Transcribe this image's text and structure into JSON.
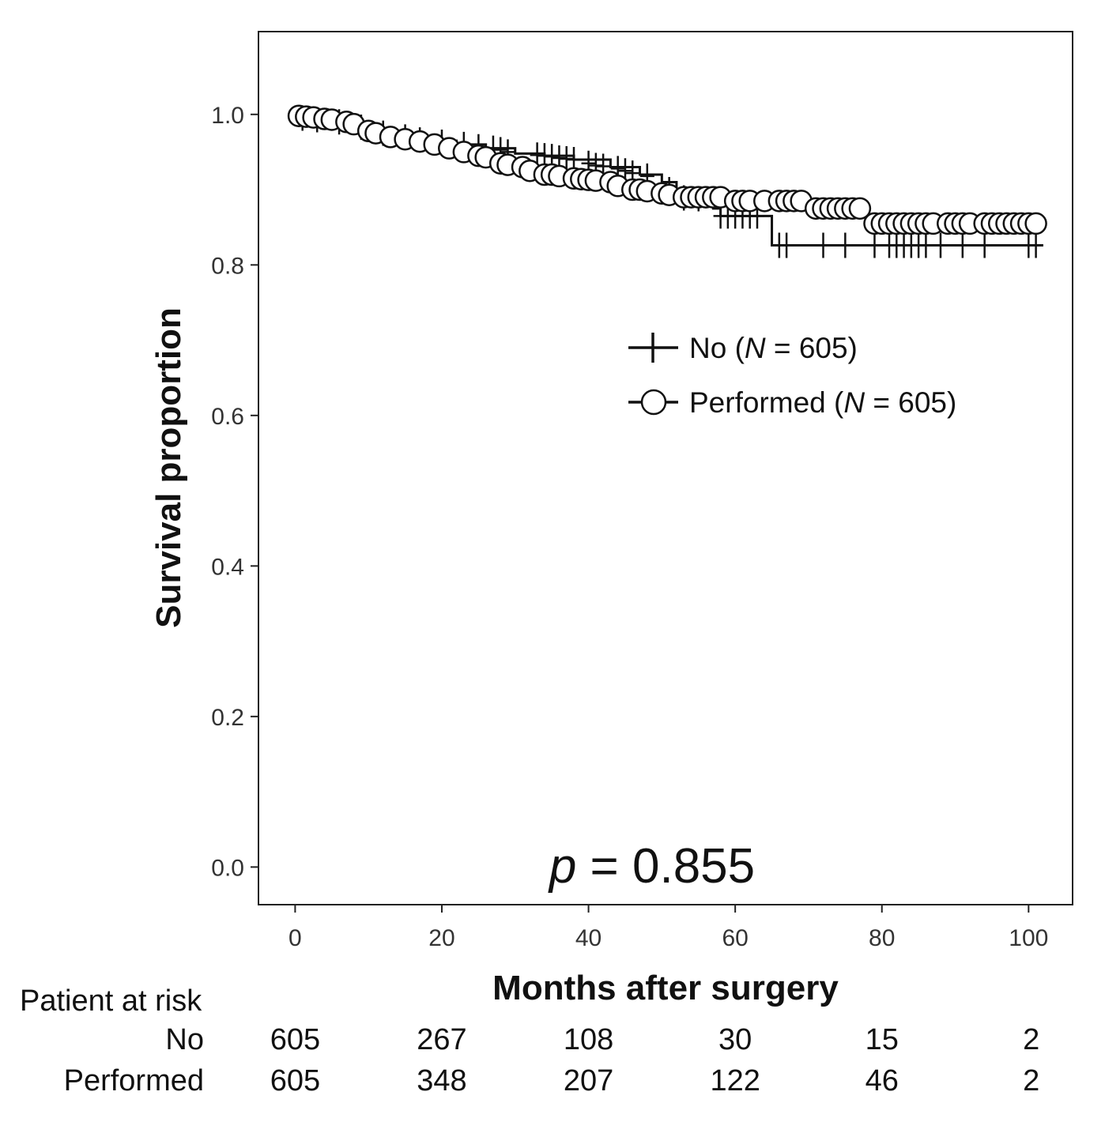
{
  "chart_data": {
    "type": "line",
    "subtype": "kaplan-meier",
    "title": "",
    "xlabel": "Months after surgery",
    "ylabel": "Survival proportion",
    "xlim": [
      -5,
      106
    ],
    "ylim": [
      -0.05,
      1.11
    ],
    "xticks": [
      0,
      20,
      40,
      60,
      80,
      100
    ],
    "yticks": [
      0.0,
      0.2,
      0.4,
      0.6,
      0.8,
      1.0
    ],
    "xtick_labels": [
      "0",
      "20",
      "40",
      "60",
      "80",
      "100"
    ],
    "ytick_labels": [
      "0.0",
      "0.2",
      "0.4",
      "0.6",
      "0.8",
      "1.0"
    ],
    "annotation": {
      "p_italic": "p",
      "p_rest": " = 0.855"
    },
    "legend_position": "center-right",
    "series": [
      {
        "name": "No",
        "legend_label": "No",
        "legend_n_italic": "N",
        "legend_n_rest": " = 605)",
        "marker": "plus",
        "steps": [
          [
            0,
            1.0
          ],
          [
            2,
            0.995
          ],
          [
            5,
            0.99
          ],
          [
            8,
            0.985
          ],
          [
            11,
            0.975
          ],
          [
            14,
            0.97
          ],
          [
            18,
            0.965
          ],
          [
            22,
            0.96
          ],
          [
            26,
            0.955
          ],
          [
            30,
            0.948
          ],
          [
            34,
            0.945
          ],
          [
            38,
            0.94
          ],
          [
            43,
            0.93
          ],
          [
            47,
            0.92
          ],
          [
            50,
            0.91
          ],
          [
            52,
            0.89
          ],
          [
            57,
            0.875
          ],
          [
            58,
            0.865
          ],
          [
            65,
            0.826
          ],
          [
            102,
            0.826
          ]
        ],
        "censors": [
          [
            1,
            0.995
          ],
          [
            3,
            0.993
          ],
          [
            6,
            0.99
          ],
          [
            9,
            0.983
          ],
          [
            12,
            0.975
          ],
          [
            15,
            0.97
          ],
          [
            17,
            0.966
          ],
          [
            20,
            0.963
          ],
          [
            23,
            0.96
          ],
          [
            25,
            0.957
          ],
          [
            27,
            0.955
          ],
          [
            28,
            0.953
          ],
          [
            29,
            0.95
          ],
          [
            33,
            0.946
          ],
          [
            34,
            0.945
          ],
          [
            35,
            0.944
          ],
          [
            36,
            0.942
          ],
          [
            37,
            0.941
          ],
          [
            38,
            0.94
          ],
          [
            40,
            0.935
          ],
          [
            41,
            0.932
          ],
          [
            42,
            0.931
          ],
          [
            44,
            0.928
          ],
          [
            45,
            0.925
          ],
          [
            46,
            0.922
          ],
          [
            48,
            0.918
          ],
          [
            51,
            0.9
          ],
          [
            53,
            0.889
          ],
          [
            55,
            0.888
          ],
          [
            58,
            0.865
          ],
          [
            59,
            0.865
          ],
          [
            60,
            0.865
          ],
          [
            61,
            0.865
          ],
          [
            62,
            0.865
          ],
          [
            63,
            0.865
          ],
          [
            66,
            0.826
          ],
          [
            67,
            0.826
          ],
          [
            72,
            0.826
          ],
          [
            75,
            0.826
          ],
          [
            79,
            0.826
          ],
          [
            81,
            0.826
          ],
          [
            82,
            0.826
          ],
          [
            83,
            0.826
          ],
          [
            84,
            0.826
          ],
          [
            85,
            0.826
          ],
          [
            86,
            0.826
          ],
          [
            88,
            0.826
          ],
          [
            91,
            0.826
          ],
          [
            94,
            0.826
          ],
          [
            100,
            0.826
          ],
          [
            101,
            0.826
          ]
        ]
      },
      {
        "name": "Performed",
        "legend_label": "Performed",
        "legend_n_italic": "N",
        "legend_n_rest": " = 605)",
        "marker": "circle",
        "steps": [
          [
            0,
            1.0
          ],
          [
            3,
            0.995
          ],
          [
            6,
            0.99
          ],
          [
            9,
            0.98
          ],
          [
            12,
            0.97
          ],
          [
            16,
            0.965
          ],
          [
            20,
            0.955
          ],
          [
            24,
            0.945
          ],
          [
            27,
            0.935
          ],
          [
            30,
            0.93
          ],
          [
            33,
            0.92
          ],
          [
            37,
            0.915
          ],
          [
            42,
            0.91
          ],
          [
            45,
            0.9
          ],
          [
            49,
            0.895
          ],
          [
            52,
            0.89
          ],
          [
            59,
            0.885
          ],
          [
            70,
            0.875
          ],
          [
            78,
            0.855
          ],
          [
            102,
            0.855
          ]
        ],
        "censors": [
          [
            0.5,
            0.998
          ],
          [
            1.5,
            0.997
          ],
          [
            2.5,
            0.996
          ],
          [
            4,
            0.994
          ],
          [
            5,
            0.993
          ],
          [
            7,
            0.99
          ],
          [
            8,
            0.987
          ],
          [
            10,
            0.978
          ],
          [
            11,
            0.975
          ],
          [
            13,
            0.97
          ],
          [
            15,
            0.967
          ],
          [
            17,
            0.964
          ],
          [
            19,
            0.96
          ],
          [
            21,
            0.955
          ],
          [
            23,
            0.95
          ],
          [
            25,
            0.945
          ],
          [
            26,
            0.943
          ],
          [
            28,
            0.935
          ],
          [
            29,
            0.933
          ],
          [
            31,
            0.93
          ],
          [
            32,
            0.925
          ],
          [
            34,
            0.92
          ],
          [
            35,
            0.92
          ],
          [
            36,
            0.918
          ],
          [
            38,
            0.915
          ],
          [
            39,
            0.914
          ],
          [
            40,
            0.913
          ],
          [
            41,
            0.912
          ],
          [
            43,
            0.91
          ],
          [
            44,
            0.905
          ],
          [
            46,
            0.9
          ],
          [
            47,
            0.9
          ],
          [
            48,
            0.898
          ],
          [
            50,
            0.895
          ],
          [
            51,
            0.893
          ],
          [
            53,
            0.89
          ],
          [
            54,
            0.89
          ],
          [
            55,
            0.89
          ],
          [
            56,
            0.89
          ],
          [
            57,
            0.89
          ],
          [
            58,
            0.89
          ],
          [
            60,
            0.885
          ],
          [
            61,
            0.885
          ],
          [
            62,
            0.885
          ],
          [
            64,
            0.885
          ],
          [
            66,
            0.885
          ],
          [
            67,
            0.885
          ],
          [
            68,
            0.885
          ],
          [
            69,
            0.885
          ],
          [
            71,
            0.875
          ],
          [
            72,
            0.875
          ],
          [
            73,
            0.875
          ],
          [
            74,
            0.875
          ],
          [
            75,
            0.875
          ],
          [
            76,
            0.875
          ],
          [
            77,
            0.875
          ],
          [
            79,
            0.855
          ],
          [
            80,
            0.855
          ],
          [
            81,
            0.855
          ],
          [
            82,
            0.855
          ],
          [
            83,
            0.855
          ],
          [
            84,
            0.855
          ],
          [
            85,
            0.855
          ],
          [
            86,
            0.855
          ],
          [
            87,
            0.855
          ],
          [
            89,
            0.855
          ],
          [
            90,
            0.855
          ],
          [
            91,
            0.855
          ],
          [
            92,
            0.855
          ],
          [
            94,
            0.855
          ],
          [
            95,
            0.855
          ],
          [
            96,
            0.855
          ],
          [
            97,
            0.855
          ],
          [
            98,
            0.855
          ],
          [
            99,
            0.855
          ],
          [
            100,
            0.855
          ],
          [
            101,
            0.855
          ]
        ]
      }
    ]
  },
  "risk_table": {
    "title": "Patient at risk",
    "times": [
      0,
      20,
      40,
      60,
      80,
      100
    ],
    "rows": [
      {
        "label": "No",
        "values": [
          "605",
          "267",
          "108",
          "30",
          "15",
          "2"
        ]
      },
      {
        "label": "Performed",
        "values": [
          "605",
          "348",
          "207",
          "122",
          "46",
          "2"
        ]
      }
    ]
  }
}
